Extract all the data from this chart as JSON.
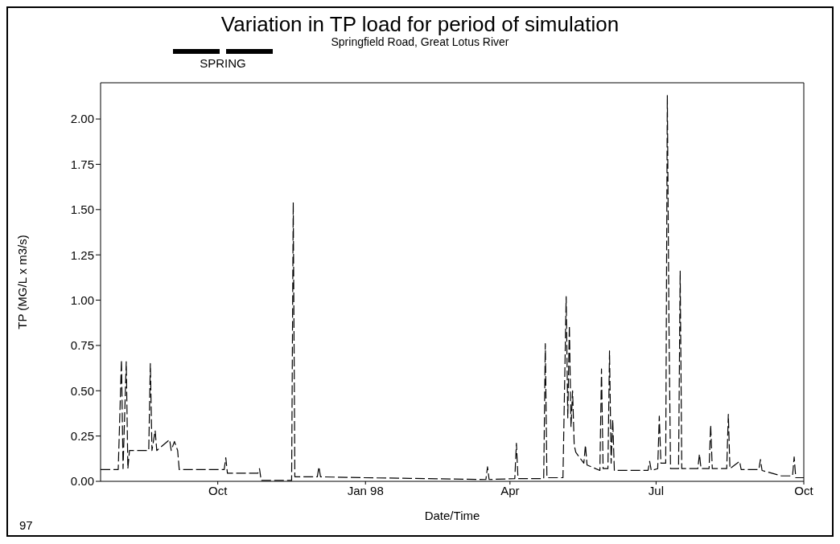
{
  "chart_data": {
    "type": "line",
    "title": "Variation in TP load for period of simulation",
    "subtitle": "Springfield Road, Great Lotus River",
    "xlabel": "Date/Time",
    "ylabel": "TP (MG/L x m3/s)",
    "annotations": [
      "97"
    ],
    "x": [
      "1997-07-20",
      "1997-07-31",
      "1997-08-02",
      "1997-08-03",
      "1997-08-05",
      "1997-08-06",
      "1997-08-07",
      "1997-08-19",
      "1997-08-20",
      "1997-08-21",
      "1997-08-23",
      "1997-08-24",
      "1997-09-01",
      "1997-09-02",
      "1997-09-04",
      "1997-09-06",
      "1997-09-07",
      "1997-10-05",
      "1997-10-06",
      "1997-10-07",
      "1997-10-26",
      "1997-10-27",
      "1997-10-28",
      "1997-11-16",
      "1997-11-17",
      "1997-11-18",
      "1997-12-02",
      "1997-12-03",
      "1997-12-04",
      "1997-12-31",
      "1998-03-17",
      "1998-03-18",
      "1998-03-19",
      "1998-04-04",
      "1998-04-05",
      "1998-04-06",
      "1998-04-22",
      "1998-04-23",
      "1998-04-24",
      "1998-05-04",
      "1998-05-06",
      "1998-05-07",
      "1998-05-08",
      "1998-05-09",
      "1998-05-10",
      "1998-05-11",
      "1998-05-12",
      "1998-05-17",
      "1998-05-18",
      "1998-05-19",
      "1998-05-27",
      "1998-05-28",
      "1998-05-29",
      "1998-06-01",
      "1998-06-02",
      "1998-06-03",
      "1998-06-04",
      "1998-06-05",
      "1998-06-26",
      "1998-06-27",
      "1998-06-28",
      "1998-07-02",
      "1998-07-03",
      "1998-07-04",
      "1998-07-07",
      "1998-07-08",
      "1998-07-09",
      "1998-07-10",
      "1998-07-15",
      "1998-07-16",
      "1998-07-17",
      "1998-07-27",
      "1998-07-28",
      "1998-07-29",
      "1998-08-03",
      "1998-08-04",
      "1998-08-05",
      "1998-08-14",
      "1998-08-15",
      "1998-08-16",
      "1998-08-22",
      "1998-08-23",
      "1998-09-03",
      "1998-09-04",
      "1998-09-05",
      "1998-09-17",
      "1998-09-24",
      "1998-09-25",
      "1998-09-26",
      "1998-10-01"
    ],
    "series": [
      {
        "name": "SPRING",
        "color": "#000000",
        "values": [
          0.065,
          0.065,
          0.67,
          0.07,
          0.66,
          0.07,
          0.17,
          0.17,
          0.65,
          0.17,
          0.28,
          0.17,
          0.23,
          0.17,
          0.22,
          0.17,
          0.065,
          0.065,
          0.13,
          0.045,
          0.045,
          0.07,
          0.005,
          0.005,
          1.54,
          0.025,
          0.025,
          0.08,
          0.025,
          0.02,
          0.01,
          0.08,
          0.01,
          0.015,
          0.21,
          0.015,
          0.015,
          0.76,
          0.02,
          0.02,
          1.02,
          0.35,
          0.86,
          0.3,
          0.5,
          0.2,
          0.16,
          0.1,
          0.2,
          0.09,
          0.06,
          0.62,
          0.07,
          0.07,
          0.72,
          0.1,
          0.34,
          0.06,
          0.06,
          0.11,
          0.06,
          0.07,
          0.36,
          0.1,
          0.1,
          2.13,
          0.89,
          0.07,
          0.07,
          1.16,
          0.07,
          0.07,
          0.15,
          0.07,
          0.07,
          0.31,
          0.07,
          0.07,
          0.37,
          0.07,
          0.11,
          0.065,
          0.065,
          0.12,
          0.06,
          0.03,
          0.03,
          0.135,
          0.02,
          0.02
        ]
      }
    ],
    "xlim": [
      "1997-07-20",
      "1998-10-01"
    ],
    "xticks": [
      {
        "value": "1997-10-01",
        "label": "Oct"
      },
      {
        "value": "1998-01-01",
        "label": "Jan 98"
      },
      {
        "value": "1998-04-01",
        "label": "Apr"
      },
      {
        "value": "1998-07-01",
        "label": "Jul"
      },
      {
        "value": "1998-10-01",
        "label": "Oct"
      }
    ],
    "ylim": [
      0,
      2.2
    ],
    "yticks": [
      {
        "value": 0,
        "label": "0.00"
      },
      {
        "value": 0.25,
        "label": "0.25"
      },
      {
        "value": 0.5,
        "label": "0.50"
      },
      {
        "value": 0.75,
        "label": "0.75"
      },
      {
        "value": 1,
        "label": "1.00"
      },
      {
        "value": 1.25,
        "label": "1.25"
      },
      {
        "value": 1.5,
        "label": "1.50"
      },
      {
        "value": 1.75,
        "label": "1.75"
      },
      {
        "value": 2,
        "label": "2.00"
      }
    ],
    "legend": "top left",
    "line_style": "dashed",
    "marker": "none"
  }
}
